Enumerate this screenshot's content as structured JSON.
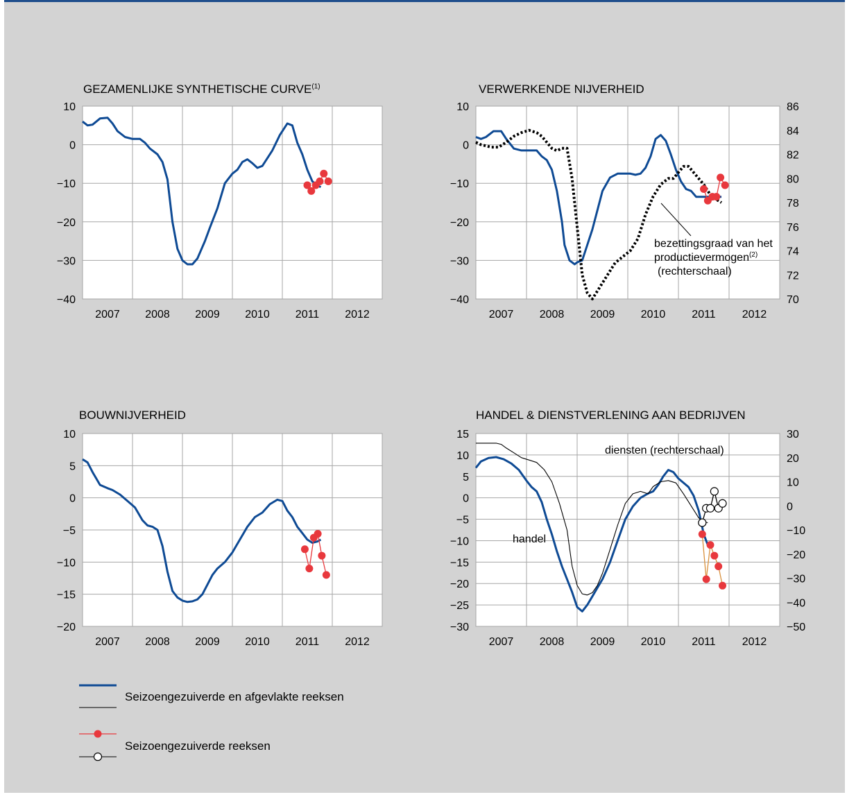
{
  "colors": {
    "background": "#d3d3d3",
    "plot": "#ffffff",
    "blue": "#0e4a94",
    "red": "#e8383d",
    "orange": "#d9903c",
    "black": "#000000",
    "grid": "#a6a6a6",
    "top_rule": "#1f4e8c"
  },
  "legend": {
    "smoothed_label": "Seizoengezuiverde en afgevlakte reeksen",
    "raw_label": "Seizoengezuiverde reeksen"
  },
  "chart_data": [
    {
      "type": "line",
      "title": "GEZAMENLIJKE SYNTHETISCHE CURVE",
      "title_sup": "(1)",
      "x_tick_labels": [
        "2007",
        "2008",
        "2009",
        "2010",
        "2011",
        "2012"
      ],
      "ylim": [
        -40,
        10
      ],
      "yticks": [
        10,
        0,
        -10,
        -20,
        -30,
        -40
      ],
      "ytick_labels": [
        "10",
        "0",
        "−10",
        "−20",
        "−30",
        "−40"
      ],
      "grid": true,
      "series": [
        {
          "role": "smoothed",
          "color": "blue",
          "x": [
            2006.5,
            2006.6,
            2006.7,
            2006.85,
            2007.0,
            2007.1,
            2007.2,
            2007.35,
            2007.5,
            2007.65,
            2007.75,
            2007.85,
            2008.0,
            2008.1,
            2008.2,
            2008.3,
            2008.4,
            2008.5,
            2008.6,
            2008.7,
            2008.8,
            2008.85,
            2008.95,
            2009.05,
            2009.2,
            2009.35,
            2009.5,
            2009.6,
            2009.7,
            2009.8,
            2009.9,
            2010.0,
            2010.1,
            2010.2,
            2010.3,
            2010.45,
            2010.55,
            2010.6,
            2010.7,
            2010.8,
            2010.9,
            2011.0,
            2011.1,
            2011.2,
            2011.27
          ],
          "values": [
            6,
            5,
            5.2,
            6.8,
            7,
            5.5,
            3.5,
            2,
            1.5,
            1.5,
            0.5,
            -1,
            -2.5,
            -4.5,
            -9,
            -20,
            -27,
            -30,
            -31,
            -31,
            -29.5,
            -28,
            -25,
            -21.5,
            -16.5,
            -10,
            -7.5,
            -6.5,
            -4.5,
            -3.8,
            -4.8,
            -6,
            -5.5,
            -3.5,
            -1.5,
            2.5,
            4.5,
            5.5,
            5,
            0.5,
            -2.5,
            -6.5,
            -9.5,
            -10.5,
            -11
          ]
        },
        {
          "role": "raw",
          "color": "red",
          "marker": "filled",
          "x": [
            2011.0,
            2011.08,
            2011.17,
            2011.25,
            2011.33,
            2011.42
          ],
          "values": [
            -10.5,
            -12,
            -10.5,
            -9.5,
            -7.5,
            -9.5
          ]
        }
      ]
    },
    {
      "type": "line",
      "title": "VERWERKENDE NIJVERHEID",
      "x_tick_labels": [
        "2007",
        "2008",
        "2009",
        "2010",
        "2011",
        "2012"
      ],
      "ylim": [
        -40,
        10
      ],
      "yticks": [
        10,
        0,
        -10,
        -20,
        -30,
        -40
      ],
      "ytick_labels": [
        "10",
        "0",
        "−10",
        "−20",
        "−30",
        "−40"
      ],
      "ylim_right": [
        70,
        86
      ],
      "yticks_right": [
        86,
        84,
        82,
        80,
        78,
        76,
        74,
        72,
        70
      ],
      "ytick_labels_right": [
        "86",
        "84",
        "82",
        "80",
        "78",
        "76",
        "74",
        "72",
        "70"
      ],
      "grid": true,
      "annotation": {
        "line1": "bezettingsgraad van het",
        "line2": "productievermogen",
        "line2_sup": "(2)",
        "line3": "(rechterschaal)"
      },
      "series": [
        {
          "role": "smoothed",
          "color": "blue",
          "axis": "left",
          "x": [
            2006.5,
            2006.6,
            2006.7,
            2006.85,
            2007.0,
            2007.1,
            2007.25,
            2007.4,
            2007.55,
            2007.7,
            2007.8,
            2007.9,
            2008.0,
            2008.1,
            2008.2,
            2008.25,
            2008.35,
            2008.45,
            2008.5,
            2008.6,
            2008.7,
            2008.8,
            2008.9,
            2009.0,
            2009.15,
            2009.3,
            2009.45,
            2009.55,
            2009.65,
            2009.75,
            2009.85,
            2009.95,
            2010.05,
            2010.15,
            2010.25,
            2010.35,
            2010.45,
            2010.55,
            2010.65,
            2010.75,
            2010.85,
            2010.95,
            2011.05,
            2011.15,
            2011.25,
            2011.35
          ],
          "values": [
            2,
            1.5,
            2,
            3.5,
            3.5,
            1.5,
            -1,
            -1.5,
            -1.5,
            -1.5,
            -3,
            -4,
            -6.5,
            -12,
            -20,
            -26,
            -30,
            -31,
            -30.5,
            -30,
            -26,
            -22,
            -17,
            -12,
            -8.5,
            -7.5,
            -7.5,
            -7.5,
            -7.8,
            -7.5,
            -6,
            -3,
            1.5,
            2.5,
            1,
            -2.5,
            -6.5,
            -9.5,
            -11.5,
            -12,
            -13.5,
            -13.5,
            -13.5,
            -13.5,
            -13.5,
            -13.5
          ]
        },
        {
          "role": "capacity",
          "color": "black",
          "style": "dotted",
          "axis": "right",
          "x": [
            2006.5,
            2006.6,
            2006.7,
            2006.8,
            2006.95,
            2007.1,
            2007.25,
            2007.4,
            2007.55,
            2007.7,
            2007.8,
            2007.9,
            2008.0,
            2008.1,
            2008.2,
            2008.3,
            2008.4,
            2008.5,
            2008.6,
            2008.7,
            2008.8,
            2008.95,
            2009.1,
            2009.25,
            2009.4,
            2009.55,
            2009.7,
            2009.85,
            2010.0,
            2010.15,
            2010.3,
            2010.4,
            2010.5,
            2010.6,
            2010.7,
            2010.8,
            2010.9,
            2011.0,
            2011.15,
            2011.35
          ],
          "values": [
            83,
            82.8,
            82.7,
            82.6,
            82.6,
            83,
            83.5,
            83.8,
            84,
            83.8,
            83.5,
            83,
            82.5,
            82.3,
            82.5,
            82.5,
            80,
            76,
            72,
            70.5,
            70,
            71,
            72,
            73,
            73.5,
            74,
            75,
            77,
            78.5,
            79.5,
            80,
            80,
            80.5,
            81,
            81,
            80.5,
            80,
            79.5,
            78.5,
            78
          ]
        },
        {
          "role": "raw",
          "color": "red",
          "marker": "filled",
          "axis": "left",
          "x": [
            2011.0,
            2011.08,
            2011.17,
            2011.25,
            2011.33,
            2011.42
          ],
          "values": [
            -11.5,
            -14.5,
            -13.5,
            -13.5,
            -8.5,
            -10.5
          ]
        }
      ]
    },
    {
      "type": "line",
      "title": "BOUWNIJVERHEID",
      "x_tick_labels": [
        "2007",
        "2008",
        "2009",
        "2010",
        "2011",
        "2012"
      ],
      "ylim": [
        -20,
        10
      ],
      "yticks": [
        10,
        5,
        0,
        -5,
        -10,
        -15,
        -20
      ],
      "ytick_labels": [
        "10",
        "5",
        "0",
        "−5",
        "−10",
        "−15",
        "−20"
      ],
      "grid": true,
      "series": [
        {
          "role": "smoothed",
          "color": "blue",
          "x": [
            2006.5,
            2006.6,
            2006.7,
            2006.85,
            2007.0,
            2007.1,
            2007.25,
            2007.4,
            2007.55,
            2007.7,
            2007.8,
            2007.9,
            2008.0,
            2008.1,
            2008.2,
            2008.3,
            2008.4,
            2008.5,
            2008.6,
            2008.7,
            2008.8,
            2008.9,
            2009.0,
            2009.1,
            2009.2,
            2009.35,
            2009.5,
            2009.65,
            2009.8,
            2009.95,
            2010.1,
            2010.25,
            2010.4,
            2010.5,
            2010.6,
            2010.7,
            2010.8,
            2010.9,
            2011.0,
            2011.1,
            2011.2,
            2011.27
          ],
          "values": [
            6,
            5.5,
            4,
            2,
            1.5,
            1.2,
            0.5,
            -0.5,
            -1.5,
            -3.5,
            -4.3,
            -4.5,
            -5,
            -7.5,
            -11.5,
            -14.5,
            -15.5,
            -16,
            -16.2,
            -16.1,
            -15.8,
            -15,
            -13.5,
            -12,
            -11,
            -10,
            -8.5,
            -6.5,
            -4.5,
            -3,
            -2.3,
            -1,
            -0.3,
            -0.5,
            -2,
            -3,
            -4.5,
            -5.5,
            -6.5,
            -7,
            -6.8,
            -6.5
          ]
        },
        {
          "role": "raw",
          "color": "red",
          "marker": "filled",
          "x": [
            2010.95,
            2011.04,
            2011.13,
            2011.21,
            2011.29,
            2011.38
          ],
          "values": [
            -8,
            -11,
            -6.2,
            -5.6,
            -9,
            -12
          ]
        }
      ]
    },
    {
      "type": "line",
      "title": "HANDEL & DIENSTVERLENING AAN BEDRIJVEN",
      "x_tick_labels": [
        "2007",
        "2008",
        "2009",
        "2010",
        "2011",
        "2012"
      ],
      "ylim": [
        -30,
        15
      ],
      "yticks": [
        15,
        10,
        5,
        0,
        -5,
        -10,
        -15,
        -20,
        -25,
        -30
      ],
      "ytick_labels": [
        "15",
        "10",
        "5",
        "0",
        "−5",
        "−10",
        "−15",
        "−20",
        "−25",
        "−30"
      ],
      "ylim_right": [
        -50,
        30
      ],
      "yticks_right": [
        30,
        20,
        10,
        0,
        -10,
        -20,
        -30,
        -40,
        -50
      ],
      "ytick_labels_right": [
        "30",
        "20",
        "10",
        "0",
        "−10",
        "−20",
        "−30",
        "−40",
        "−50"
      ],
      "grid": true,
      "annotations": [
        "diensten (rechterschaal)",
        "handel"
      ],
      "series": [
        {
          "name": "handel",
          "role": "smoothed",
          "color": "blue",
          "axis": "left",
          "x": [
            2006.5,
            2006.6,
            2006.75,
            2006.9,
            2007.05,
            2007.2,
            2007.35,
            2007.5,
            2007.6,
            2007.7,
            2007.8,
            2007.9,
            2008.0,
            2008.1,
            2008.2,
            2008.3,
            2008.4,
            2008.5,
            2008.6,
            2008.7,
            2008.8,
            2008.9,
            2009.0,
            2009.15,
            2009.3,
            2009.45,
            2009.6,
            2009.75,
            2009.9,
            2010.0,
            2010.1,
            2010.2,
            2010.3,
            2010.4,
            2010.5,
            2010.6,
            2010.7,
            2010.8,
            2010.9,
            2011.0,
            2011.08
          ],
          "values": [
            7,
            8.5,
            9.3,
            9.5,
            9,
            8,
            6.5,
            4,
            2.5,
            1.5,
            -1,
            -5,
            -8.5,
            -12.5,
            -16,
            -19,
            -22,
            -25.5,
            -26.5,
            -25,
            -23,
            -21,
            -19,
            -15,
            -10,
            -5,
            -2,
            0,
            1,
            1.5,
            3,
            5,
            6.5,
            6,
            4.5,
            3.5,
            2.5,
            0.5,
            -3,
            -8.5,
            -11
          ]
        },
        {
          "name": "diensten",
          "role": "smoothed",
          "color": "black",
          "axis": "right",
          "x": [
            2006.5,
            2006.6,
            2006.75,
            2006.9,
            2007.0,
            2007.1,
            2007.25,
            2007.4,
            2007.55,
            2007.7,
            2007.85,
            2008.0,
            2008.15,
            2008.3,
            2008.4,
            2008.5,
            2008.6,
            2008.7,
            2008.8,
            2008.9,
            2009.0,
            2009.15,
            2009.3,
            2009.45,
            2009.6,
            2009.75,
            2009.9,
            2010.0,
            2010.15,
            2010.3,
            2010.45,
            2010.6,
            2010.75,
            2010.9,
            2011.0,
            2011.08
          ],
          "values": [
            26,
            26,
            26,
            26,
            25.5,
            24,
            22,
            20,
            19,
            18,
            15,
            10,
            1,
            -10,
            -25,
            -33,
            -36.5,
            -37,
            -36,
            -33,
            -28,
            -18,
            -8,
            1,
            5,
            6,
            5,
            8,
            10,
            10.5,
            9.5,
            5,
            0,
            -5,
            -6.5,
            -7
          ]
        },
        {
          "name": "handel",
          "role": "raw",
          "color": "orange",
          "marker": "filled",
          "marker_color": "red",
          "axis": "left",
          "x": [
            2010.97,
            2011.05,
            2011.13,
            2011.21,
            2011.29,
            2011.37
          ],
          "values": [
            -8.5,
            -19,
            -11,
            -13.5,
            -16,
            -20.5
          ]
        },
        {
          "name": "diensten",
          "role": "raw",
          "color": "black",
          "marker": "open",
          "axis": "right",
          "x": [
            2010.97,
            2011.05,
            2011.13,
            2011.21,
            2011.29,
            2011.37
          ],
          "values": [
            -7,
            -1,
            -1,
            6,
            -1,
            1
          ]
        }
      ]
    }
  ]
}
